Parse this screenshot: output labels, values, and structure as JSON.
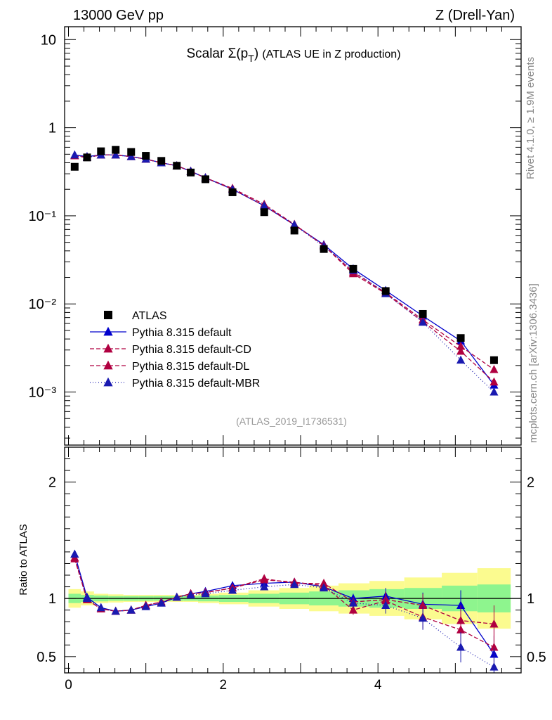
{
  "header": {
    "left": "13000 GeV pp",
    "right": "Z (Drell-Yan)"
  },
  "side_labels": {
    "rivet": "Rivet 4.1.0, ≥ 1.9M events",
    "mcplots": "mcplots.cern.ch [arXiv:1306.3436]"
  },
  "chart_data": {
    "type": "line",
    "title": "Scalar Σ(p_T) (ATLAS UE in Z production)",
    "analysis_id": "(ATLAS_2019_I1736531)",
    "xlim": [
      -0.05,
      5.85
    ],
    "x_ticks": [
      "0",
      "2",
      "4"
    ],
    "x_tick_values": [
      0,
      2,
      4
    ],
    "main": {
      "yscale": "log",
      "ylim": [
        0.00025,
        14
      ],
      "y_ticks": [
        "10",
        "1",
        "10⁻¹",
        "10⁻²",
        "10⁻³"
      ],
      "y_tick_values": [
        10,
        1,
        0.1,
        0.01,
        0.001
      ]
    },
    "ratio": {
      "ylabel": "Ratio to ATLAS",
      "ylim": [
        0.36,
        2.3
      ],
      "y_ticks": [
        "2",
        "1",
        "0.5"
      ],
      "y_tick_values": [
        2,
        1,
        0.5
      ]
    },
    "x": [
      0.08,
      0.24,
      0.42,
      0.61,
      0.81,
      1.0,
      1.2,
      1.4,
      1.58,
      1.77,
      2.12,
      2.53,
      2.92,
      3.3,
      3.68,
      4.1,
      4.58,
      5.07,
      5.5
    ],
    "data": {
      "name": "ATLAS",
      "values": [
        0.36,
        0.46,
        0.54,
        0.56,
        0.53,
        0.48,
        0.42,
        0.37,
        0.31,
        0.26,
        0.185,
        0.11,
        0.068,
        0.042,
        0.025,
        0.014,
        0.0077,
        0.0041,
        0.0023
      ],
      "band_inner": [
        0.04,
        0.03,
        0.025,
        0.02,
        0.02,
        0.02,
        0.02,
        0.02,
        0.02,
        0.025,
        0.03,
        0.04,
        0.05,
        0.06,
        0.07,
        0.08,
        0.09,
        0.11,
        0.12
      ],
      "band_outer": [
        0.08,
        0.06,
        0.04,
        0.035,
        0.03,
        0.03,
        0.03,
        0.03,
        0.03,
        0.04,
        0.05,
        0.07,
        0.09,
        0.11,
        0.13,
        0.15,
        0.18,
        0.22,
        0.26
      ]
    },
    "series": [
      {
        "name": "Pythia 8.315 default",
        "color": "#0000cc",
        "dash": "",
        "values": [
          0.49,
          0.47,
          0.49,
          0.49,
          0.47,
          0.44,
          0.4,
          0.37,
          0.32,
          0.27,
          0.2,
          0.13,
          0.079,
          0.047,
          0.025,
          0.0142,
          0.0073,
          0.0038,
          0.0012
        ],
        "ratio": [
          1.38,
          1.01,
          0.92,
          0.89,
          0.9,
          0.93,
          0.96,
          1.01,
          1.04,
          1.06,
          1.11,
          1.13,
          1.14,
          1.1,
          1.0,
          1.02,
          0.95,
          0.94,
          0.52
        ]
      },
      {
        "name": "Pythia 8.315 default-CD",
        "color": "#b00040",
        "dash": "6,3",
        "values": [
          0.48,
          0.46,
          0.49,
          0.49,
          0.47,
          0.44,
          0.4,
          0.37,
          0.32,
          0.27,
          0.205,
          0.135,
          0.08,
          0.046,
          0.023,
          0.0134,
          0.0066,
          0.0033,
          0.0018
        ],
        "ratio": [
          1.34,
          0.99,
          0.91,
          0.89,
          0.9,
          0.94,
          0.97,
          1.01,
          1.04,
          1.05,
          1.09,
          1.17,
          1.13,
          1.13,
          0.97,
          0.99,
          0.94,
          0.81,
          0.78
        ]
      },
      {
        "name": "Pythia 8.315 default-DL",
        "color": "#b00040",
        "dash": "6,3",
        "values": [
          0.48,
          0.46,
          0.49,
          0.49,
          0.47,
          0.44,
          0.4,
          0.37,
          0.32,
          0.27,
          0.2,
          0.13,
          0.079,
          0.046,
          0.022,
          0.0131,
          0.0063,
          0.0029,
          0.0013
        ],
        "ratio": [
          1.35,
          0.99,
          0.91,
          0.89,
          0.9,
          0.94,
          0.97,
          1.01,
          1.04,
          1.05,
          1.09,
          1.16,
          1.14,
          1.11,
          0.9,
          0.98,
          0.84,
          0.73,
          0.58
        ]
      },
      {
        "name": "Pythia 8.315 default-MBR",
        "color": "#1a1ab0",
        "dash": "1,3",
        "values": [
          0.49,
          0.46,
          0.49,
          0.49,
          0.47,
          0.44,
          0.4,
          0.37,
          0.32,
          0.27,
          0.2,
          0.13,
          0.079,
          0.045,
          0.024,
          0.0131,
          0.0062,
          0.0023,
          0.001
        ],
        "ratio": [
          1.38,
          1.0,
          0.92,
          0.89,
          0.9,
          0.93,
          0.96,
          1.01,
          1.03,
          1.04,
          1.07,
          1.1,
          1.12,
          1.09,
          0.96,
          0.94,
          0.83,
          0.58,
          0.41
        ]
      }
    ]
  }
}
